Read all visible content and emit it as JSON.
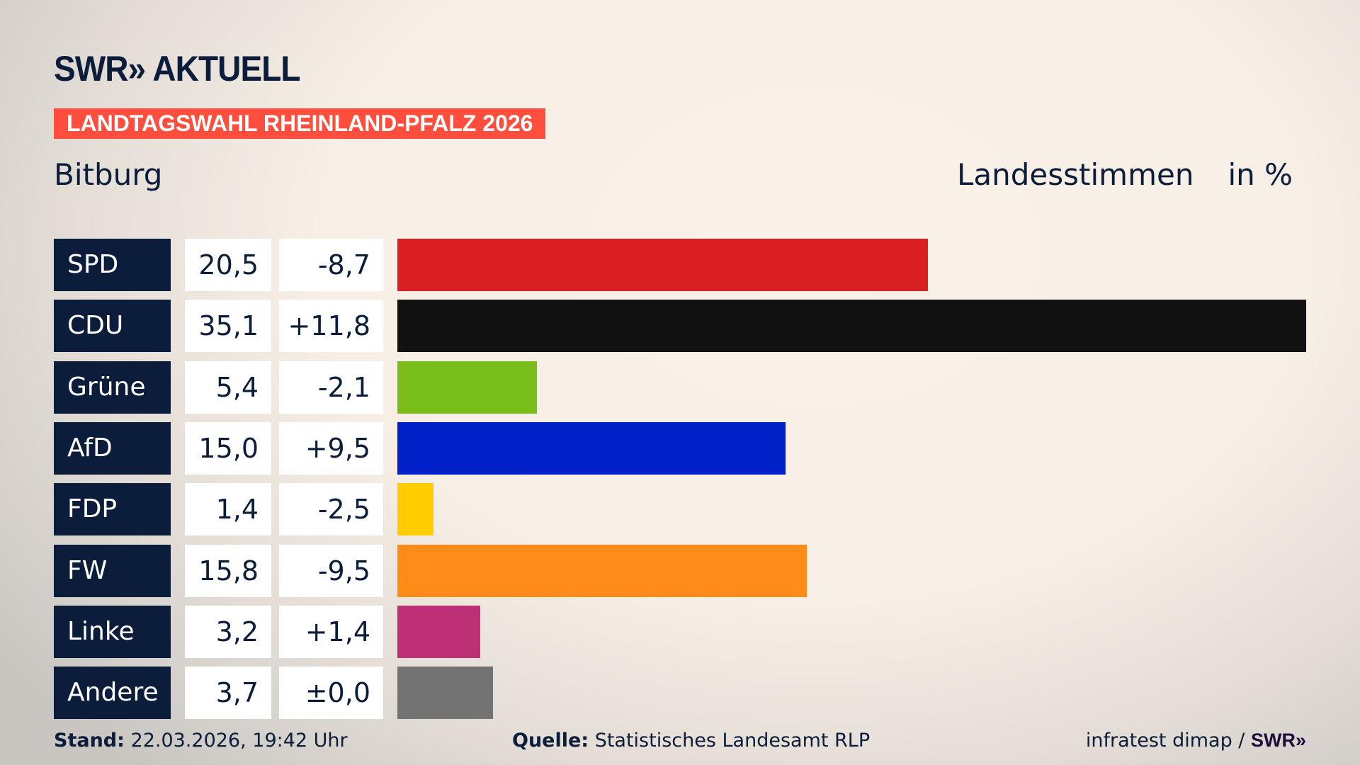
{
  "header": {
    "logo": "SWR» AKTUELL",
    "banner": "LANDTAGSWAHL RHEINLAND-PFALZ 2026",
    "region": "Bitburg",
    "measure": "Landesstimmen",
    "unit": "in %"
  },
  "chart_data": {
    "type": "bar",
    "orientation": "horizontal",
    "categories": [
      "SPD",
      "CDU",
      "Grüne",
      "AfD",
      "FDP",
      "FW",
      "Linke",
      "Andere"
    ],
    "values": [
      20.5,
      35.1,
      5.4,
      15.0,
      1.4,
      15.8,
      3.2,
      3.7
    ],
    "value_labels": [
      "20,5",
      "35,1",
      "5,4",
      "15,0",
      "1,4",
      "15,8",
      "3,2",
      "3,7"
    ],
    "diff_labels": [
      "-8,7",
      "+11,8",
      "-2,1",
      "+9,5",
      "-2,5",
      "-9,5",
      "+1,4",
      "±0,0"
    ],
    "colors": [
      "#d91f22",
      "#111111",
      "#79bd1a",
      "#0021c8",
      "#ffcc00",
      "#ff8c19",
      "#be3075",
      "#737373"
    ],
    "ylabel": "in %"
  },
  "footer": {
    "stand_label": "Stand:",
    "stand_value": "22.03.2026, 19:42 Uhr",
    "source_label": "Quelle:",
    "source_value": "Statistisches Landesamt RLP",
    "credit": "infratest dimap / ",
    "credit_logo": "SWR»"
  }
}
